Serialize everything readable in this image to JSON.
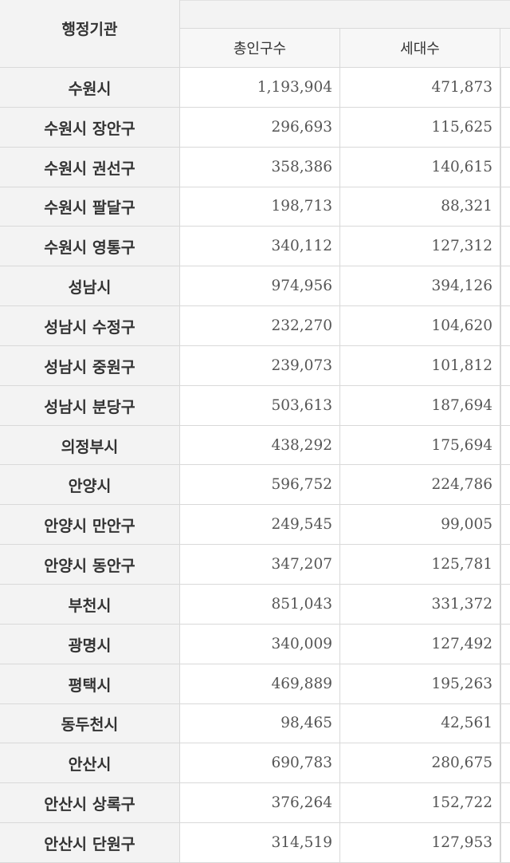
{
  "table": {
    "header_main": "행정기관",
    "header_sub": [
      "총인구수",
      "세대수"
    ],
    "rows": [
      {
        "name": "수원시",
        "population": "1,193,904",
        "households": "471,873"
      },
      {
        "name": "수원시 장안구",
        "population": "296,693",
        "households": "115,625"
      },
      {
        "name": "수원시 권선구",
        "population": "358,386",
        "households": "140,615"
      },
      {
        "name": "수원시 팔달구",
        "population": "198,713",
        "households": "88,321"
      },
      {
        "name": "수원시 영통구",
        "population": "340,112",
        "households": "127,312"
      },
      {
        "name": "성남시",
        "population": "974,956",
        "households": "394,126"
      },
      {
        "name": "성남시 수정구",
        "population": "232,270",
        "households": "104,620"
      },
      {
        "name": "성남시 중원구",
        "population": "239,073",
        "households": "101,812"
      },
      {
        "name": "성남시 분당구",
        "population": "503,613",
        "households": "187,694"
      },
      {
        "name": "의정부시",
        "population": "438,292",
        "households": "175,694"
      },
      {
        "name": "안양시",
        "population": "596,752",
        "households": "224,786"
      },
      {
        "name": "안양시 만안구",
        "population": "249,545",
        "households": "99,005"
      },
      {
        "name": "안양시 동안구",
        "population": "347,207",
        "households": "125,781"
      },
      {
        "name": "부천시",
        "population": "851,043",
        "households": "331,372"
      },
      {
        "name": "광명시",
        "population": "340,009",
        "households": "127,492"
      },
      {
        "name": "평택시",
        "population": "469,889",
        "households": "195,263"
      },
      {
        "name": "동두천시",
        "population": "98,465",
        "households": "42,561"
      },
      {
        "name": "안산시",
        "population": "690,783",
        "households": "280,675"
      },
      {
        "name": "안산시 상록구",
        "population": "376,264",
        "households": "152,722"
      },
      {
        "name": "안산시 단원구",
        "population": "314,519",
        "households": "127,953"
      }
    ]
  }
}
